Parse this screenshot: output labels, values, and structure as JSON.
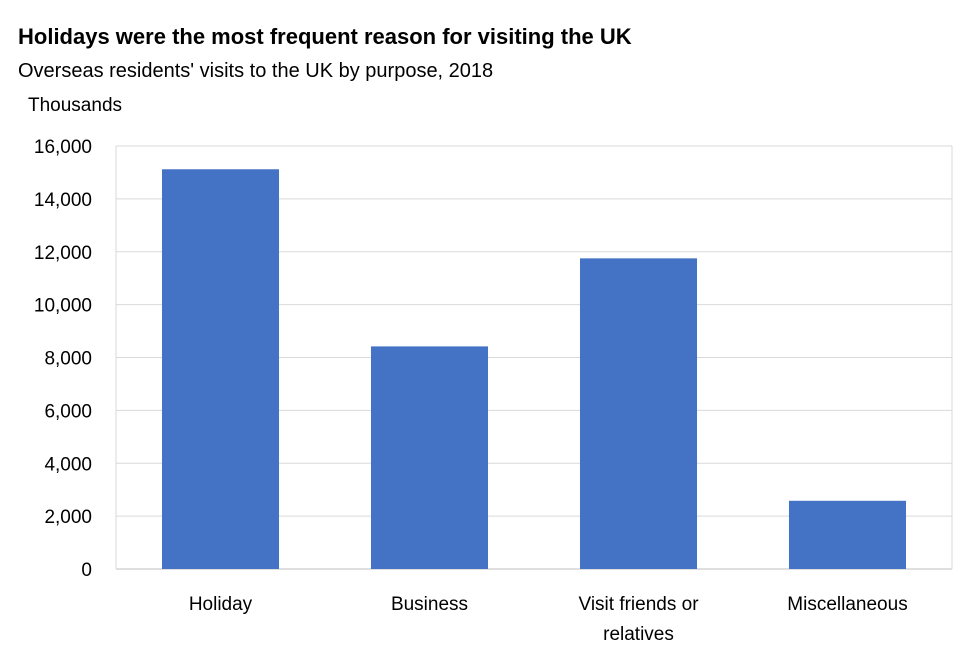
{
  "chart_data": {
    "type": "bar",
    "title": "Holidays were the most frequent reason for visiting the UK",
    "subtitle": "Overseas residents' visits to the UK by purpose, 2018",
    "ylabel": "Thousands",
    "xlabel": "",
    "categories": [
      "Holiday",
      "Business",
      "Visit friends or relatives",
      "Miscellaneous"
    ],
    "category_lines": [
      [
        "Holiday"
      ],
      [
        "Business"
      ],
      [
        "Visit friends or",
        "relatives"
      ],
      [
        "Miscellaneous"
      ]
    ],
    "values": [
      15120,
      8420,
      11750,
      2580
    ],
    "ylim": [
      0,
      16000
    ],
    "yticks": [
      "0",
      "2,000",
      "4,000",
      "6,000",
      "8,000",
      "10,000",
      "12,000",
      "14,000",
      "16,000"
    ],
    "ytick_values": [
      0,
      2000,
      4000,
      6000,
      8000,
      10000,
      12000,
      14000,
      16000
    ],
    "grid": true,
    "legend": "none",
    "bar_color": "#4472C4",
    "grid_color": "#D9D9D9"
  }
}
